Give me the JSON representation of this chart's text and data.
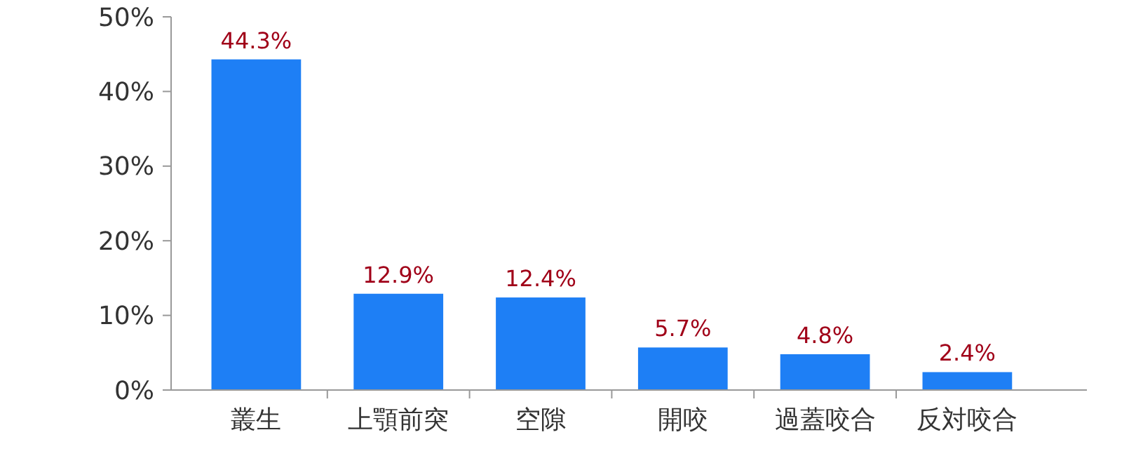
{
  "chart_data": {
    "type": "bar",
    "categories": [
      "叢生",
      "上顎前突",
      "空隙",
      "開咬",
      "過蓋咬合",
      "反対咬合"
    ],
    "values": [
      44.3,
      12.9,
      12.4,
      5.7,
      4.8,
      2.4
    ],
    "value_labels": [
      "44.3%",
      "12.9%",
      "12.4%",
      "5.7%",
      "4.8%",
      "2.4%"
    ],
    "color": "#1e7ff5",
    "ylim": [
      0,
      50
    ],
    "yticks": [
      {
        "value": 0,
        "label": "0%"
      },
      {
        "value": 10,
        "label": "10%"
      },
      {
        "value": 20,
        "label": "20%"
      },
      {
        "value": 30,
        "label": "30%"
      },
      {
        "value": 40,
        "label": "40%"
      },
      {
        "value": 50,
        "label": "50%"
      }
    ],
    "grid": false
  }
}
